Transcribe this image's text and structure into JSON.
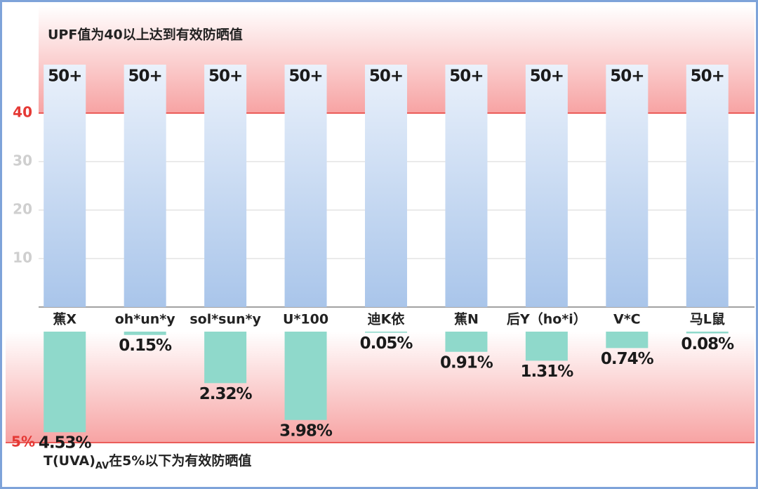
{
  "chart_data": [
    {
      "type": "bar",
      "annotation": "UPF值为40以上达到有效防晒值",
      "categories": [
        "蕉X",
        "oh*un*y",
        "sol*sun*y",
        "U*100",
        "迪K依",
        "蕉N",
        "后Y（ho*i）",
        "V*C",
        "马L鼠"
      ],
      "values": [
        50,
        50,
        50,
        50,
        50,
        50,
        50,
        50,
        50
      ],
      "value_labels": [
        "50+",
        "50+",
        "50+",
        "50+",
        "50+",
        "50+",
        "50+",
        "50+",
        "50+"
      ],
      "color": "#a9c5ea",
      "ylim": [
        0,
        50
      ],
      "yticks": [
        10,
        20,
        30,
        40
      ],
      "threshold": 40,
      "threshold_color": "#e53935",
      "grid": true
    },
    {
      "type": "bar-down",
      "annotation": [
        "T(UVA)",
        "AV",
        "在5%以下为有效防晒值"
      ],
      "values": [
        4.53,
        0.15,
        2.32,
        3.98,
        0.05,
        0.91,
        1.31,
        0.74,
        0.08
      ],
      "value_labels": [
        "4.53%",
        "0.15%",
        "2.32%",
        "3.98%",
        "0.05%",
        "0.91%",
        "1.31%",
        "0.74%",
        "0.08%"
      ],
      "color": "#8fd9cb",
      "ylim": [
        0,
        5
      ],
      "yticks": [
        {
          "value": 5,
          "label": "5%"
        }
      ],
      "threshold": 5,
      "threshold_color": "#e53935"
    }
  ]
}
